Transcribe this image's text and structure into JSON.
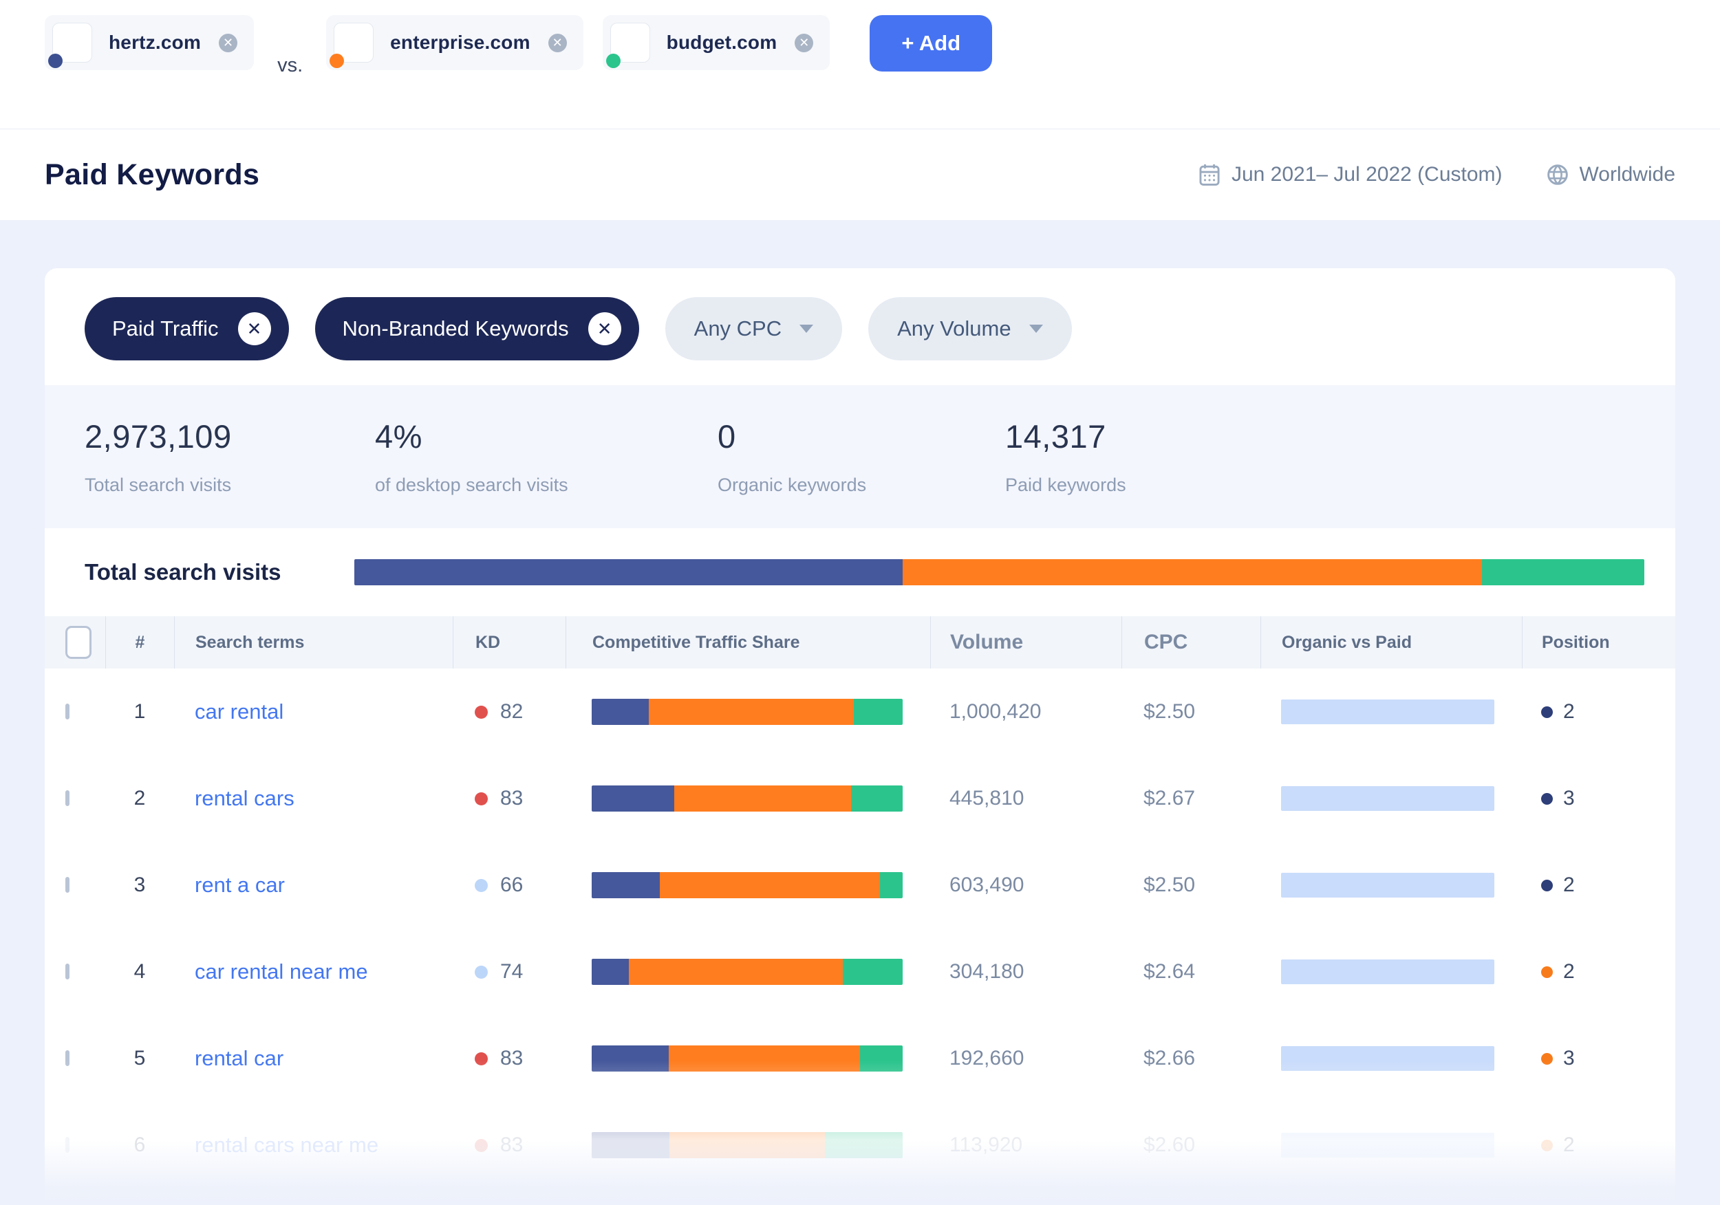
{
  "comparison": {
    "vs_label": "vs.",
    "add_button_label": "+ Add",
    "domains": [
      {
        "name": "hertz.com",
        "dot_color": "#3c4f90"
      },
      {
        "name": "enterprise.com",
        "dot_color": "#ff7d1f"
      },
      {
        "name": "budget.com",
        "dot_color": "#2bc48d"
      }
    ]
  },
  "header": {
    "title": "Paid Keywords",
    "date_range": "Jun 2021– Jul 2022 (Custom)",
    "region": "Worldwide"
  },
  "filters": {
    "active": [
      {
        "label": "Paid Traffic"
      },
      {
        "label": "Non-Branded Keywords"
      }
    ],
    "dropdowns": [
      {
        "label": "Any CPC"
      },
      {
        "label": "Any Volume"
      }
    ]
  },
  "stats": [
    {
      "value": "2,973,109",
      "label": "Total search visits"
    },
    {
      "value": "4%",
      "label": "of desktop search visits"
    },
    {
      "value": "0",
      "label": "Organic keywords"
    },
    {
      "value": "14,317",
      "label": "Paid keywords"
    }
  ],
  "total_search_visits": {
    "label": "Total search visits",
    "segments": [
      {
        "domain": "hertz.com",
        "percent": 42.5,
        "color": "#45589b"
      },
      {
        "domain": "enterprise.com",
        "percent": 44.9,
        "color": "#ff7d1f"
      },
      {
        "domain": "budget.com",
        "percent": 12.6,
        "color": "#2bc48d"
      }
    ]
  },
  "table": {
    "columns": [
      "#",
      "Search terms",
      "KD",
      "Competitive Traffic Share",
      "Volume",
      "CPC",
      "Organic vs Paid",
      "Position"
    ],
    "kd_colors": {
      "red": "#e0514e",
      "blue": "#bcd6f9"
    },
    "position_colors": {
      "navy": "#2d3e79",
      "orange": "#f87b1b"
    },
    "organic_vs_paid_color": "#c9dcfb",
    "rows": [
      {
        "num": "1",
        "term": "car rental",
        "kd": "82",
        "kd_level": "red",
        "share": [
          18.4,
          66.0,
          15.6
        ],
        "volume": "1,000,420",
        "cpc": "$2.50",
        "organic_vs_paid": 100,
        "position": "2",
        "position_color": "navy"
      },
      {
        "num": "2",
        "term": "rental cars",
        "kd": "83",
        "kd_level": "red",
        "share": [
          26.6,
          56.8,
          16.6
        ],
        "volume": "445,810",
        "cpc": "$2.67",
        "organic_vs_paid": 100,
        "position": "3",
        "position_color": "navy"
      },
      {
        "num": "3",
        "term": "rent a car",
        "kd": "66",
        "kd_level": "blue",
        "share": [
          22.0,
          70.6,
          7.4
        ],
        "volume": "603,490",
        "cpc": "$2.50",
        "organic_vs_paid": 100,
        "position": "2",
        "position_color": "navy"
      },
      {
        "num": "4",
        "term": "car rental near me",
        "kd": "74",
        "kd_level": "blue",
        "share": [
          12.0,
          68.8,
          19.2
        ],
        "volume": "304,180",
        "cpc": "$2.64",
        "organic_vs_paid": 100,
        "position": "2",
        "position_color": "orange"
      },
      {
        "num": "5",
        "term": "rental car",
        "kd": "83",
        "kd_level": "red",
        "share": [
          24.8,
          61.5,
          13.7
        ],
        "volume": "192,660",
        "cpc": "$2.66",
        "organic_vs_paid": 100,
        "position": "3",
        "position_color": "orange"
      },
      {
        "num": "6",
        "term": "rental cars near me",
        "kd": "83",
        "kd_level": "red",
        "share": [
          25.0,
          50.0,
          25.0
        ],
        "volume": "113,920",
        "cpc": "$2.60",
        "organic_vs_paid": 100,
        "position": "2",
        "position_color": "orange"
      }
    ]
  }
}
